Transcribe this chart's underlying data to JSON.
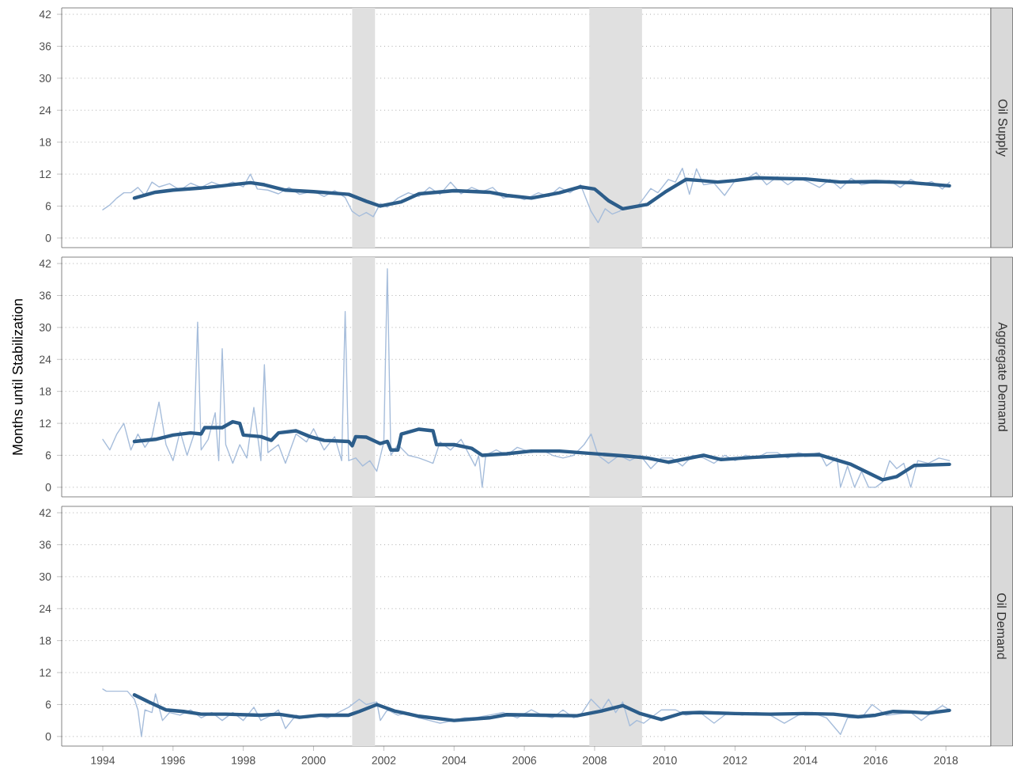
{
  "chart_data": [
    {
      "type": "line",
      "title": "Oil Supply",
      "tick_labels": "y",
      "grid": "y",
      "xlim": [
        1992.83,
        2019.28
      ],
      "ylim": [
        -1.8,
        43.2
      ],
      "xticks": [
        1994,
        1996,
        1998,
        2000,
        2002,
        2004,
        2006,
        2008,
        2010,
        2012,
        2014,
        2016,
        2018
      ],
      "yticks": [
        0,
        6,
        12,
        18,
        24,
        30,
        36,
        42
      ],
      "bands": [
        {
          "axis": "x",
          "from": 2001.1,
          "to": 2001.75,
          "color": "#e0e0e0"
        },
        {
          "axis": "x",
          "from": 2007.85,
          "to": 2009.35,
          "color": "#e0e0e0"
        }
      ],
      "series": [
        {
          "color": "#a6bddb",
          "x": [
            1994.0,
            1994.2,
            1994.4,
            1994.6,
            1994.8,
            1995.0,
            1995.2,
            1995.4,
            1995.6,
            1995.9,
            1996.2,
            1996.5,
            1996.8,
            1997.1,
            1997.4,
            1997.7,
            1998.0,
            1998.2,
            1998.4,
            1998.7,
            1999.0,
            1999.3,
            1999.6,
            2000.0,
            2000.3,
            2000.6,
            2000.9,
            2001.1,
            2001.3,
            2001.5,
            2001.7,
            2001.9,
            2002.1,
            2002.4,
            2002.7,
            2003.0,
            2003.3,
            2003.6,
            2003.9,
            2004.2,
            2004.5,
            2004.8,
            2005.1,
            2005.4,
            2005.7,
            2006.0,
            2006.4,
            2006.7,
            2007.0,
            2007.3,
            2007.6,
            2007.9,
            2008.1,
            2008.3,
            2008.5,
            2008.7,
            2008.9,
            2009.2,
            2009.4,
            2009.6,
            2009.8,
            2010.1,
            2010.3,
            2010.5,
            2010.7,
            2010.9,
            2011.1,
            2011.4,
            2011.7,
            2012.0,
            2012.3,
            2012.6,
            2012.9,
            2013.2,
            2013.5,
            2013.8,
            2014.1,
            2014.4,
            2014.7,
            2015.0,
            2015.3,
            2015.6,
            2016.0,
            2016.4,
            2016.7,
            2017.0,
            2017.3,
            2017.6,
            2017.9,
            2018.1
          ],
          "values": [
            5.3,
            6.2,
            7.5,
            8.5,
            8.5,
            9.5,
            8.0,
            10.5,
            9.6,
            10.2,
            9.0,
            10.3,
            9.5,
            10.5,
            9.8,
            10.5,
            9.6,
            12.0,
            9.2,
            9.0,
            8.3,
            9.5,
            8.2,
            8.8,
            7.8,
            8.9,
            7.6,
            5.0,
            4.1,
            4.8,
            4.0,
            6.5,
            5.8,
            7.5,
            8.5,
            7.8,
            9.5,
            8.2,
            10.5,
            8.3,
            9.5,
            8.7,
            9.5,
            7.5,
            8.0,
            7.2,
            8.5,
            7.8,
            9.5,
            8.5,
            10.0,
            5.0,
            2.9,
            5.5,
            4.5,
            5.0,
            5.8,
            5.8,
            7.5,
            9.3,
            8.5,
            11.0,
            10.5,
            13.1,
            8.2,
            13.0,
            10.0,
            10.3,
            8.0,
            10.8,
            11.0,
            12.3,
            10.0,
            11.5,
            10.0,
            11.3,
            10.5,
            9.5,
            11.0,
            9.3,
            11.2,
            10.0,
            10.5,
            10.8,
            9.5,
            11.0,
            10.0,
            10.6,
            9.2,
            10.5
          ]
        },
        {
          "color": "#2c5d8a",
          "x": [
            1994.9,
            1995.5,
            1996.0,
            1997.0,
            1998.2,
            1998.6,
            1999.2,
            2000.0,
            2001.0,
            2001.5,
            2001.9,
            2002.5,
            2003.0,
            2004.0,
            2005.0,
            2005.5,
            2006.2,
            2007.0,
            2007.6,
            2008.0,
            2008.4,
            2008.8,
            2009.5,
            2010.0,
            2010.6,
            2011.0,
            2011.5,
            2012.0,
            2012.6,
            2013.2,
            2014.0,
            2015.0,
            2016.0,
            2017.0,
            2018.1
          ],
          "values": [
            7.5,
            8.6,
            9.0,
            9.5,
            10.4,
            10.0,
            9.0,
            8.7,
            8.2,
            6.9,
            6.0,
            6.8,
            8.3,
            8.9,
            8.6,
            8.0,
            7.5,
            8.5,
            9.6,
            9.2,
            7.0,
            5.5,
            6.3,
            8.6,
            11.0,
            10.8,
            10.5,
            10.8,
            11.3,
            11.2,
            11.1,
            10.5,
            10.6,
            10.4,
            9.8
          ]
        }
      ]
    },
    {
      "type": "line",
      "title": "Aggregate Demand",
      "ylabel": "Months until Stabilization",
      "tick_labels": "y",
      "grid": "y",
      "xlim": [
        1992.83,
        2019.28
      ],
      "ylim": [
        -1.8,
        43.2
      ],
      "xticks": [
        1994,
        1996,
        1998,
        2000,
        2002,
        2004,
        2006,
        2008,
        2010,
        2012,
        2014,
        2016,
        2018
      ],
      "yticks": [
        0,
        6,
        12,
        18,
        24,
        30,
        36,
        42
      ],
      "bands": [
        {
          "axis": "x",
          "from": 2001.1,
          "to": 2001.75,
          "color": "#e0e0e0"
        },
        {
          "axis": "x",
          "from": 2007.85,
          "to": 2009.35,
          "color": "#e0e0e0"
        }
      ],
      "series": [
        {
          "color": "#a6bddb",
          "x": [
            1994.0,
            1994.2,
            1994.4,
            1994.6,
            1994.8,
            1995.0,
            1995.2,
            1995.4,
            1995.6,
            1995.8,
            1996.0,
            1996.2,
            1996.4,
            1996.6,
            1996.7,
            1996.8,
            1997.0,
            1997.2,
            1997.3,
            1997.4,
            1997.5,
            1997.7,
            1997.9,
            1998.1,
            1998.3,
            1998.5,
            1998.6,
            1998.7,
            1999.0,
            1999.2,
            1999.5,
            1999.8,
            2000.0,
            2000.3,
            2000.6,
            2000.8,
            2000.9,
            2001.0,
            2001.2,
            2001.4,
            2001.6,
            2001.8,
            2002.0,
            2002.1,
            2002.2,
            2002.4,
            2002.7,
            2003.0,
            2003.2,
            2003.4,
            2003.6,
            2003.9,
            2004.2,
            2004.4,
            2004.6,
            2004.7,
            2004.8,
            2004.9,
            2005.2,
            2005.5,
            2005.8,
            2006.2,
            2006.5,
            2006.8,
            2007.1,
            2007.4,
            2007.7,
            2007.9,
            2008.1,
            2008.4,
            2008.7,
            2009.0,
            2009.3,
            2009.6,
            2009.9,
            2010.2,
            2010.5,
            2010.8,
            2011.1,
            2011.4,
            2011.7,
            2012.0,
            2012.3,
            2012.6,
            2012.9,
            2013.2,
            2013.5,
            2013.8,
            2014.1,
            2014.4,
            2014.6,
            2014.9,
            2015.0,
            2015.2,
            2015.4,
            2015.6,
            2015.8,
            2016.0,
            2016.2,
            2016.4,
            2016.6,
            2016.8,
            2017.0,
            2017.2,
            2017.5,
            2017.8,
            2018.1
          ],
          "values": [
            9.0,
            7.0,
            10.0,
            12.0,
            7.0,
            10.0,
            7.5,
            9.5,
            16.0,
            8.0,
            5.0,
            10.5,
            6.0,
            10.0,
            31.0,
            7.0,
            9.0,
            14.0,
            5.0,
            26.0,
            8.0,
            4.5,
            8.0,
            5.5,
            15.0,
            5.0,
            23.0,
            6.5,
            8.0,
            4.5,
            10.0,
            8.5,
            11.0,
            7.0,
            9.5,
            5.0,
            33.0,
            5.0,
            5.5,
            4.0,
            5.0,
            3.0,
            8.5,
            41.0,
            6.0,
            8.0,
            6.0,
            5.5,
            5.0,
            4.5,
            8.5,
            7.0,
            9.0,
            6.5,
            4.0,
            6.0,
            0.0,
            6.0,
            7.0,
            6.0,
            7.5,
            6.5,
            7.0,
            6.0,
            5.5,
            6.0,
            8.0,
            10.0,
            6.0,
            4.5,
            6.0,
            5.0,
            6.0,
            3.5,
            5.5,
            5.5,
            4.0,
            6.0,
            5.5,
            4.5,
            6.0,
            5.0,
            6.0,
            5.5,
            6.5,
            6.5,
            5.5,
            6.5,
            6.0,
            6.5,
            4.0,
            5.5,
            0.0,
            4.0,
            0.0,
            3.0,
            0.0,
            0.0,
            1.0,
            5.0,
            3.5,
            4.5,
            0.0,
            5.0,
            4.5,
            5.5,
            5.0
          ]
        },
        {
          "color": "#2c5d8a",
          "x": [
            1994.9,
            1995.5,
            1996.0,
            1996.5,
            1996.8,
            1996.9,
            1997.4,
            1997.7,
            1997.9,
            1998.0,
            1998.5,
            1998.8,
            1999.0,
            1999.5,
            1999.9,
            2000.3,
            2001.0,
            2001.1,
            2001.2,
            2001.5,
            2001.9,
            2002.1,
            2002.2,
            2002.4,
            2002.5,
            2003.0,
            2003.4,
            2003.5,
            2004.0,
            2004.5,
            2004.8,
            2005.5,
            2006.2,
            2007.0,
            2008.0,
            2009.0,
            2009.5,
            2010.1,
            2011.1,
            2011.6,
            2012.5,
            2013.6,
            2014.4,
            2015.3,
            2016.2,
            2016.6,
            2017.1,
            2018.1
          ],
          "values": [
            8.6,
            9.0,
            9.8,
            10.2,
            10.0,
            11.2,
            11.2,
            12.3,
            12.0,
            9.8,
            9.5,
            8.8,
            10.2,
            10.6,
            9.5,
            8.8,
            8.6,
            7.8,
            9.5,
            9.4,
            8.2,
            8.6,
            7.0,
            7.0,
            10.0,
            10.9,
            10.6,
            8.0,
            8.0,
            7.3,
            6.0,
            6.3,
            6.8,
            6.8,
            6.3,
            5.8,
            5.5,
            4.7,
            6.0,
            5.2,
            5.6,
            6.0,
            6.1,
            4.3,
            1.4,
            2.0,
            4.1,
            4.3
          ]
        }
      ]
    },
    {
      "type": "line",
      "title": "Oil Demand",
      "grid": "y",
      "xlim": [
        1992.83,
        2019.28
      ],
      "ylim": [
        -1.8,
        43.2
      ],
      "xticks": [
        1994,
        1996,
        1998,
        2000,
        2002,
        2004,
        2006,
        2008,
        2010,
        2012,
        2014,
        2016,
        2018
      ],
      "yticks": [
        0,
        6,
        12,
        18,
        24,
        30,
        36,
        42
      ],
      "bands": [
        {
          "axis": "x",
          "from": 2001.1,
          "to": 2001.75,
          "color": "#e0e0e0"
        },
        {
          "axis": "x",
          "from": 2007.85,
          "to": 2009.35,
          "color": "#e0e0e0"
        }
      ],
      "series": [
        {
          "color": "#a6bddb",
          "x": [
            1994.0,
            1994.1,
            1994.7,
            1994.9,
            1995.0,
            1995.1,
            1995.2,
            1995.4,
            1995.5,
            1995.7,
            1995.9,
            1996.2,
            1996.5,
            1996.8,
            1997.1,
            1997.4,
            1997.7,
            1998.0,
            1998.3,
            1998.5,
            1998.8,
            1999.0,
            1999.2,
            1999.5,
            1999.8,
            2000.1,
            2000.4,
            2000.7,
            2001.0,
            2001.3,
            2001.5,
            2001.8,
            2001.9,
            2002.1,
            2002.4,
            2002.7,
            2003.0,
            2003.3,
            2003.6,
            2004.0,
            2004.3,
            2004.6,
            2005.0,
            2005.4,
            2005.8,
            2006.2,
            2006.5,
            2006.8,
            2007.1,
            2007.4,
            2007.6,
            2007.9,
            2008.2,
            2008.4,
            2008.6,
            2008.8,
            2009.0,
            2009.2,
            2009.4,
            2009.6,
            2009.9,
            2010.3,
            2010.6,
            2011.0,
            2011.4,
            2011.8,
            2012.2,
            2012.6,
            2013.0,
            2013.4,
            2013.8,
            2014.2,
            2014.6,
            2015.0,
            2015.2,
            2015.6,
            2015.9,
            2016.3,
            2016.7,
            2017.0,
            2017.3,
            2017.6,
            2017.9,
            2018.1
          ],
          "values": [
            8.9,
            8.5,
            8.5,
            7.0,
            5.0,
            0.0,
            5.0,
            4.5,
            8.0,
            3.0,
            4.5,
            4.0,
            5.0,
            3.5,
            4.5,
            3.0,
            4.5,
            3.0,
            5.5,
            3.0,
            4.0,
            5.0,
            1.5,
            4.0,
            3.5,
            4.0,
            3.5,
            4.5,
            5.5,
            7.0,
            6.0,
            6.5,
            3.0,
            5.0,
            4.0,
            4.5,
            3.5,
            3.0,
            2.5,
            3.0,
            3.5,
            3.5,
            4.0,
            4.5,
            3.5,
            5.0,
            4.0,
            3.5,
            5.0,
            3.5,
            4.0,
            7.0,
            5.0,
            7.0,
            4.5,
            6.5,
            2.0,
            3.0,
            2.5,
            3.5,
            5.0,
            5.0,
            4.0,
            4.5,
            2.5,
            4.5,
            4.0,
            4.5,
            4.0,
            2.5,
            4.0,
            4.5,
            3.5,
            0.4,
            3.5,
            3.5,
            6.0,
            4.0,
            null,
            4.5,
            3.0,
            4.5,
            5.8,
            5.0
          ]
        },
        {
          "color": "#2c5d8a",
          "x": [
            1994.9,
            1995.3,
            1995.8,
            1996.3,
            1996.8,
            1997.5,
            1998.5,
            1999.0,
            1999.6,
            2000.2,
            2001.0,
            2001.3,
            2001.8,
            2002.3,
            2003.0,
            2004.0,
            2005.0,
            2005.5,
            2006.5,
            2007.5,
            2008.2,
            2008.8,
            2009.3,
            2009.9,
            2010.5,
            2011.0,
            2012.0,
            2013.0,
            2014.0,
            2014.8,
            2015.5,
            2016.0,
            2016.5,
            2017.0,
            2017.5,
            2018.1
          ],
          "values": [
            7.8,
            6.5,
            5.0,
            4.7,
            4.2,
            4.2,
            4.0,
            4.2,
            3.6,
            4.0,
            4.0,
            4.7,
            6.0,
            4.8,
            3.8,
            3.0,
            3.5,
            4.1,
            4.0,
            3.9,
            4.8,
            5.8,
            4.3,
            3.2,
            4.4,
            4.5,
            4.3,
            4.2,
            4.3,
            4.2,
            3.7,
            4.0,
            4.7,
            4.6,
            4.4,
            4.9
          ]
        }
      ]
    }
  ]
}
